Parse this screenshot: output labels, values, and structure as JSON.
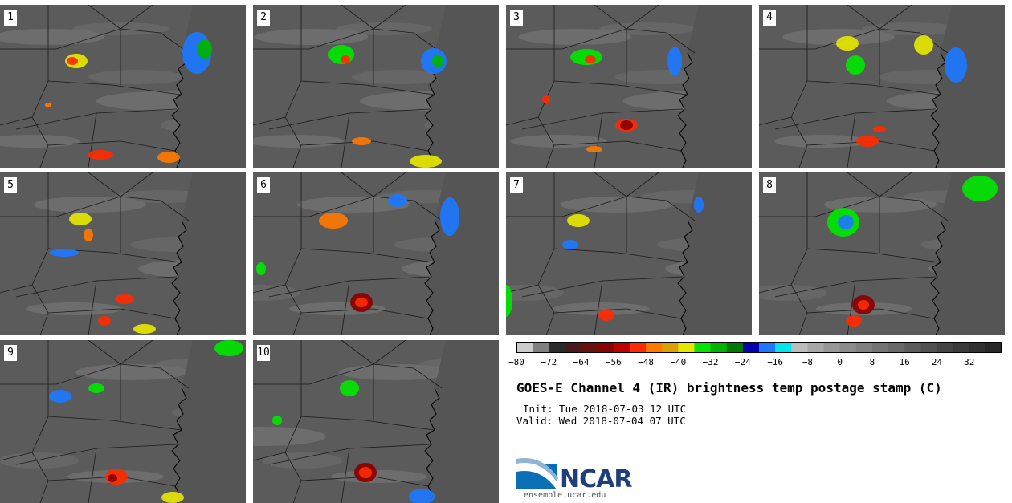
{
  "panels": [
    {
      "label": "1"
    },
    {
      "label": "2"
    },
    {
      "label": "3"
    },
    {
      "label": "4"
    },
    {
      "label": "5"
    },
    {
      "label": "6"
    },
    {
      "label": "7"
    },
    {
      "label": "8"
    },
    {
      "label": "9"
    },
    {
      "label": "10"
    }
  ],
  "colorbar": {
    "colors": [
      "#cccccc",
      "#7f7f7f",
      "#2b2b2b",
      "#4a1a1a",
      "#6a0e0e",
      "#8b0000",
      "#c00000",
      "#ff2a00",
      "#ff7800",
      "#d9a000",
      "#e6e600",
      "#00e600",
      "#00b400",
      "#007a00",
      "#0000b4",
      "#1e78ff",
      "#00e6f0",
      "#bcbcbc",
      "#a8a8a8",
      "#989898",
      "#8c8c8c",
      "#808080",
      "#747474",
      "#686868",
      "#5c5c5c",
      "#505050",
      "#444444",
      "#3a3a3a",
      "#303030",
      "#262626"
    ],
    "ticks": [
      "−80",
      "−72",
      "−64",
      "−56",
      "−48",
      "−40",
      "−32",
      "−24",
      "−16",
      "−8",
      "0",
      "8",
      "16",
      "24",
      "32"
    ]
  },
  "title": "GOES-E Channel 4 (IR) brightness temp postage stamp (C)",
  "init": "Init: Tue 2018-07-03 12 UTC",
  "valid": "Valid: Wed 2018-07-04 07 UTC",
  "logo": {
    "text": "NCAR",
    "url": "ensemble.ucar.edu"
  }
}
